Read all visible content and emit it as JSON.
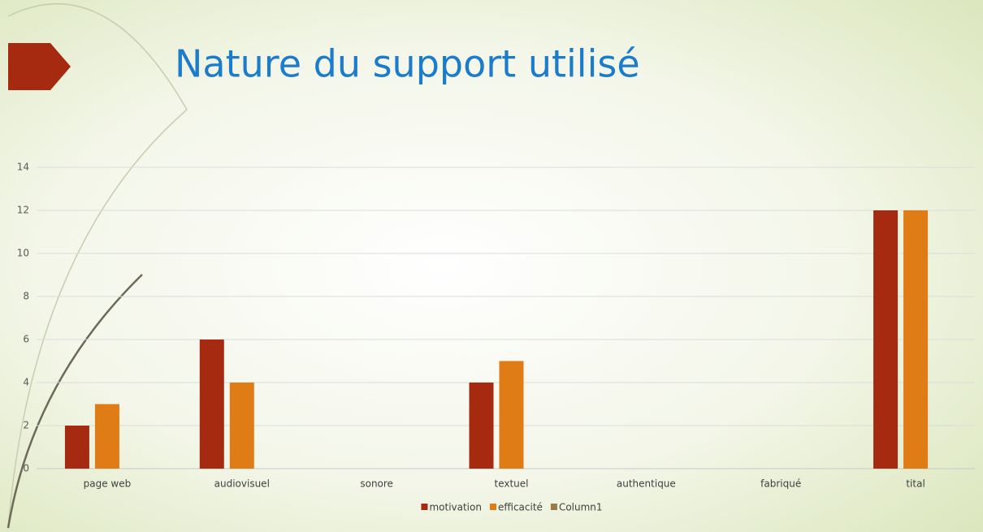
{
  "chart_data": {
    "type": "bar",
    "title": "Nature du support utilisé",
    "categories": [
      "page web",
      "audiovisuel",
      "sonore",
      "textuel",
      "authentique",
      "fabriqué",
      "tital"
    ],
    "series": [
      {
        "name": "motivation",
        "color": "#a52a10",
        "values": [
          2,
          6,
          null,
          4,
          null,
          null,
          12
        ]
      },
      {
        "name": "efficacité",
        "color": "#e07c16",
        "values": [
          3,
          4,
          null,
          5,
          null,
          null,
          12
        ]
      },
      {
        "name": "Column1",
        "color": "#9c7b4a",
        "values": [
          null,
          null,
          null,
          null,
          null,
          null,
          null
        ]
      }
    ],
    "ylim": [
      0,
      14
    ],
    "yticks": [
      0,
      2,
      4,
      6,
      8,
      10,
      12,
      14
    ],
    "grid": true,
    "legend": "bottom"
  }
}
